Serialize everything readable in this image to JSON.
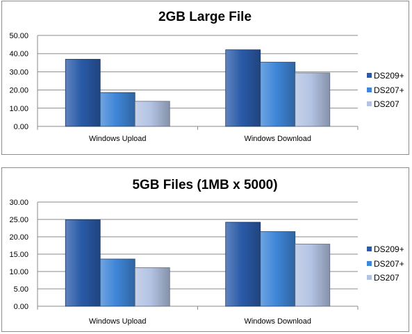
{
  "chart_data": [
    {
      "type": "bar",
      "title": "2GB Large File",
      "categories": [
        "Windows Upload",
        "Windows Download"
      ],
      "series": [
        {
          "name": "DS209+",
          "values": [
            36.9,
            42.1
          ],
          "color": "#2a5ba8"
        },
        {
          "name": "DS207+",
          "values": [
            18.6,
            35.3
          ],
          "color": "#3f86d8"
        },
        {
          "name": "DS207",
          "values": [
            13.8,
            29.4
          ],
          "color": "#b3c3e3"
        }
      ],
      "ylim": [
        0,
        50
      ],
      "yticks": [
        "0.00",
        "10.00",
        "20.00",
        "30.00",
        "40.00",
        "50.00"
      ],
      "legend_position": "right",
      "grid": true
    },
    {
      "type": "bar",
      "title": "5GB Files (1MB x 5000)",
      "categories": [
        "Windows Upload",
        "Windows Download"
      ],
      "series": [
        {
          "name": "DS209+",
          "values": [
            24.9,
            24.2
          ],
          "color": "#2a5ba8"
        },
        {
          "name": "DS207+",
          "values": [
            13.6,
            21.5
          ],
          "color": "#3f86d8"
        },
        {
          "name": "DS207",
          "values": [
            11.1,
            17.9
          ],
          "color": "#b3c3e3"
        }
      ],
      "ylim": [
        0,
        30
      ],
      "yticks": [
        "0.00",
        "5.00",
        "10.00",
        "15.00",
        "20.00",
        "25.00",
        "30.00"
      ],
      "legend_position": "right",
      "grid": true
    }
  ]
}
